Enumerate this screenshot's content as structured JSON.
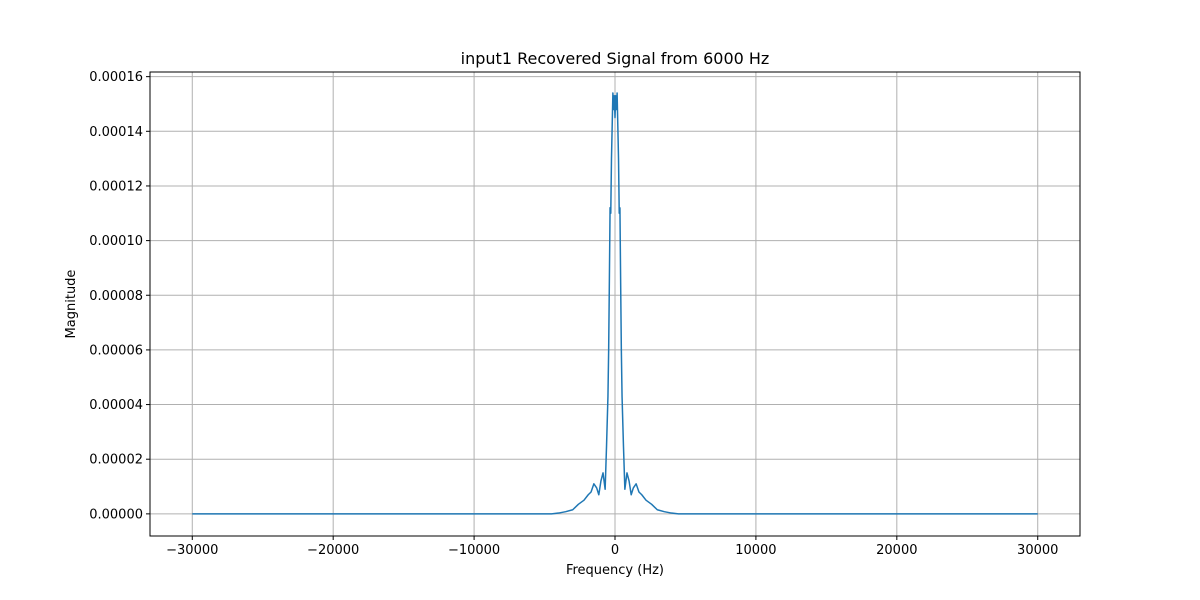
{
  "chart_data": {
    "type": "line",
    "title": "input1 Recovered Signal from 6000 Hz",
    "xlabel": "Frequency (Hz)",
    "ylabel": "Magnitude",
    "xlim": [
      -33000,
      33000
    ],
    "ylim": [
      -8.1e-06,
      0.0001617
    ],
    "xticks": [
      -30000,
      -20000,
      -10000,
      0,
      10000,
      20000,
      30000
    ],
    "xtick_labels": [
      "−30000",
      "−20000",
      "−10000",
      "0",
      "10000",
      "20000",
      "30000"
    ],
    "yticks": [
      0,
      2e-05,
      4e-05,
      6e-05,
      8e-05,
      0.0001,
      0.00012,
      0.00014,
      0.00016
    ],
    "ytick_labels": [
      "0.00000",
      "0.00002",
      "0.00004",
      "0.00006",
      "0.00008",
      "0.00010",
      "0.00012",
      "0.00014",
      "0.00016"
    ],
    "grid": true,
    "legend": "none",
    "series": [
      {
        "color": "#1f77b4",
        "x": [
          -30000,
          -4500,
          -4000,
          -3500,
          -3000,
          -2600,
          -2200,
          -1900,
          -1700,
          -1500,
          -1300,
          -1150,
          -1000,
          -850,
          -700,
          -600,
          -500,
          -450,
          -400,
          -350,
          -300,
          -250,
          -200,
          -150,
          -100,
          -50,
          0,
          50,
          100,
          150,
          200,
          250,
          300,
          350,
          400,
          450,
          500,
          600,
          700,
          850,
          1000,
          1150,
          1300,
          1500,
          1700,
          1900,
          2200,
          2600,
          3000,
          3500,
          4000,
          4500,
          30000
        ],
        "y": [
          0,
          0,
          3e-07,
          8e-07,
          1.5e-06,
          3.5e-06,
          5e-06,
          7e-06,
          8e-06,
          1.1e-05,
          9.5e-06,
          7e-06,
          1.2e-05,
          1.5e-05,
          9e-06,
          2.5e-05,
          4.3e-05,
          6e-05,
          8.5e-05,
          0.000112,
          0.00011,
          0.00013,
          0.000142,
          0.000154,
          0.000148,
          0.000153,
          0.000145,
          0.000153,
          0.000148,
          0.000154,
          0.000142,
          0.00013,
          0.00011,
          0.000112,
          8.5e-05,
          6e-05,
          4.3e-05,
          2.5e-05,
          9e-06,
          1.5e-05,
          1.2e-05,
          7e-06,
          9.5e-06,
          1.1e-05,
          8e-06,
          7e-06,
          5e-06,
          3.5e-06,
          1.5e-06,
          8e-07,
          3e-07,
          0,
          0
        ]
      }
    ]
  }
}
